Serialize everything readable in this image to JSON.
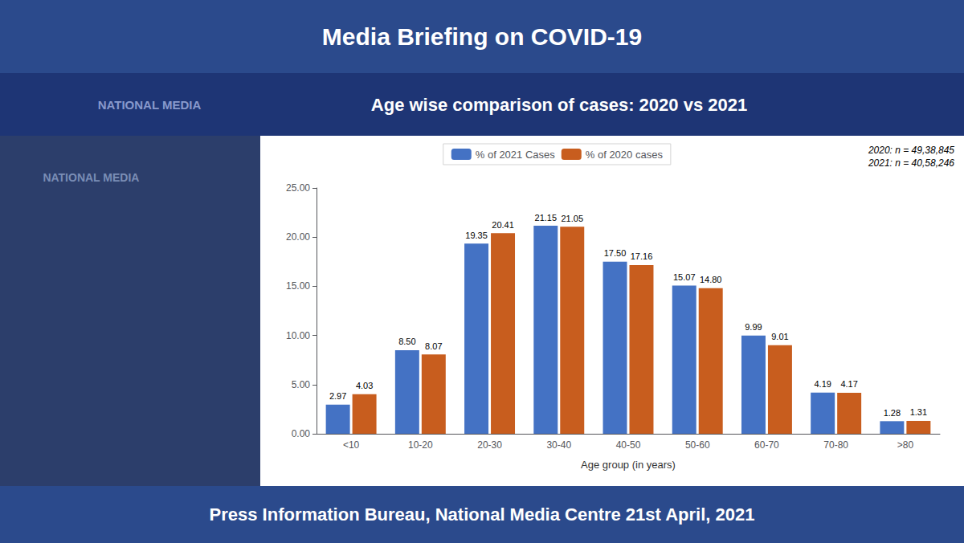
{
  "chart_data": {
    "type": "bar",
    "title": "Media Briefing on COVID-19",
    "subtitle": "Age wise comparison of cases: 2020 vs 2021",
    "annotations": [
      "NATIONAL MEDIA",
      "2020: n = 49,38,845",
      "2021: n = 40,58,246",
      "Press Information Bureau, National Media Centre 21st April, 2021"
    ],
    "xlabel": "Age group (in years)",
    "categories": [
      "<10",
      "10-20",
      "20-30",
      "30-40",
      "40-50",
      "50-60",
      "60-70",
      "70-80",
      ">80"
    ],
    "series": [
      {
        "name": "% of 2021 Cases",
        "color": "#4472C4",
        "values": [
          2.97,
          8.5,
          19.35,
          21.15,
          17.5,
          15.07,
          9.99,
          4.19,
          1.28
        ],
        "value_labels": [
          "2.97",
          "8.50",
          "19.35",
          "21.15",
          "17.50",
          "15.07",
          "9.99",
          "4.19",
          "1.28"
        ]
      },
      {
        "name": "% of 2020 cases",
        "color": "#C85D1E",
        "values": [
          4.03,
          8.07,
          20.41,
          21.05,
          17.16,
          14.8,
          9.01,
          4.17,
          1.31
        ],
        "value_labels": [
          "4.03",
          "8.07",
          "20.41",
          "21.05",
          "17.16",
          "14.80",
          "9.01",
          "4.17",
          "1.31"
        ]
      }
    ],
    "ylim": [
      0,
      25
    ],
    "yticks": [
      {
        "value": 0,
        "label": "0.00"
      },
      {
        "value": 5,
        "label": "5.00"
      },
      {
        "value": 10,
        "label": "10.00"
      },
      {
        "value": 15,
        "label": "15.00"
      },
      {
        "value": 20,
        "label": "20.00"
      },
      {
        "value": 25,
        "label": "25.00"
      }
    ],
    "grid": false,
    "legend": "top",
    "data_labels": true
  }
}
